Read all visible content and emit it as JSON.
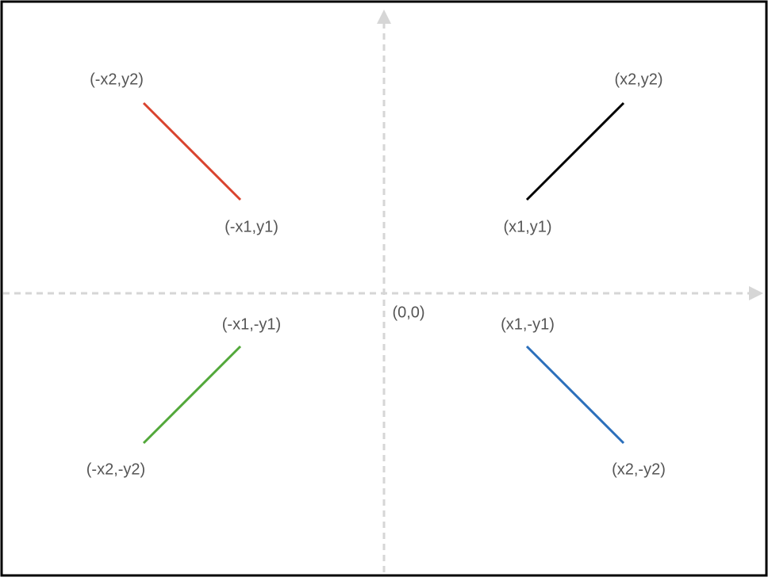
{
  "origin": {
    "label": "(0,0)"
  },
  "points": [
    {
      "label": "(-x2,y2)"
    },
    {
      "label": "(x2,y2)"
    },
    {
      "label": "(-x1,y1)"
    },
    {
      "label": "(x1,y1)"
    },
    {
      "label": "(-x1,-y1)"
    },
    {
      "label": "(x1,-y1)"
    },
    {
      "label": "(-x2,-y2)"
    },
    {
      "label": "(x2,-y2)"
    }
  ]
}
